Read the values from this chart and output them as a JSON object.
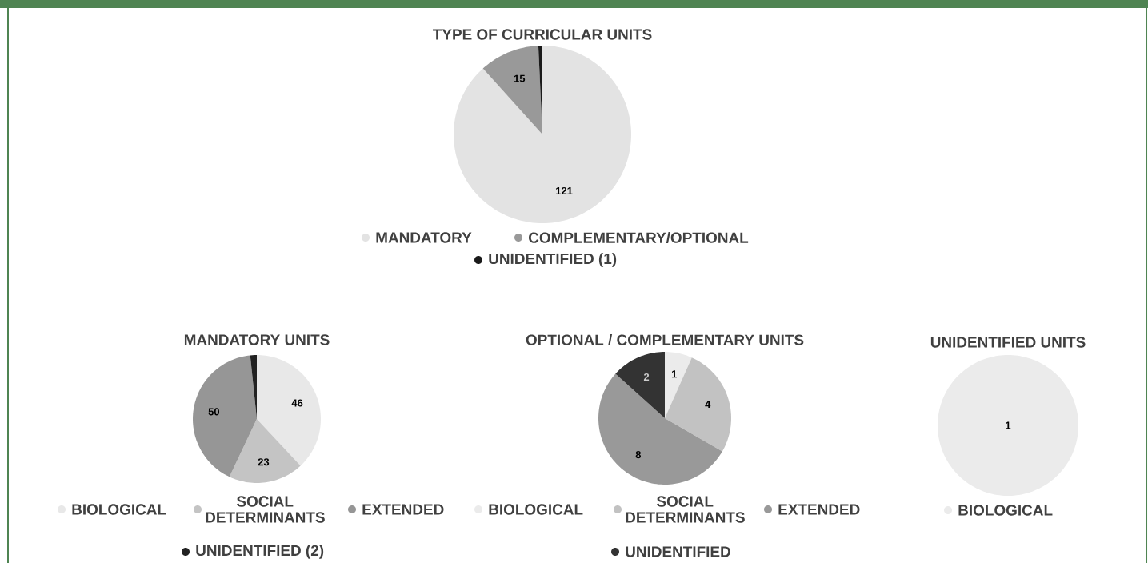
{
  "chart_data": [
    {
      "type": "pie",
      "title": "TYPE OF CURRICULAR UNITS",
      "categories": [
        "MANDATORY",
        "COMPLEMENTARY/OPTIONAL",
        "UNIDENTIFIED (1)"
      ],
      "values": [
        121,
        15,
        1
      ],
      "colors": [
        "#e3e3e3",
        "#999999",
        "#1a1a1a"
      ],
      "value_labels": [
        "121",
        "15",
        null
      ],
      "legend": "bottom"
    },
    {
      "type": "pie",
      "title": "MANDATORY UNITS",
      "categories": [
        "BIOLOGICAL",
        "SOCIAL DETERMINANTS",
        "EXTENDED",
        "UNIDENTIFIED (2)"
      ],
      "values": [
        46,
        23,
        50,
        2
      ],
      "colors": [
        "#e8e8e8",
        "#c4c4c4",
        "#969696",
        "#222222"
      ],
      "value_labels": [
        "46",
        "23",
        "50",
        null
      ],
      "legend": "bottom"
    },
    {
      "type": "pie",
      "title": "OPTIONAL / COMPLEMENTARY UNITS",
      "categories": [
        "BIOLOGICAL",
        "SOCIAL DETERMINANTS",
        "EXTENDED",
        "UNIDENTIFIED"
      ],
      "values": [
        1,
        4,
        8,
        2
      ],
      "colors": [
        "#ebebeb",
        "#c2c2c2",
        "#999999",
        "#333333"
      ],
      "data_labels": true,
      "legend": "bottom"
    },
    {
      "type": "pie",
      "title": "UNIDENTIFIED UNITS",
      "categories": [
        "BIOLOGICAL"
      ],
      "values": [
        1
      ],
      "colors": [
        "#ebebeb"
      ],
      "data_labels": true,
      "legend": "bottom"
    }
  ]
}
